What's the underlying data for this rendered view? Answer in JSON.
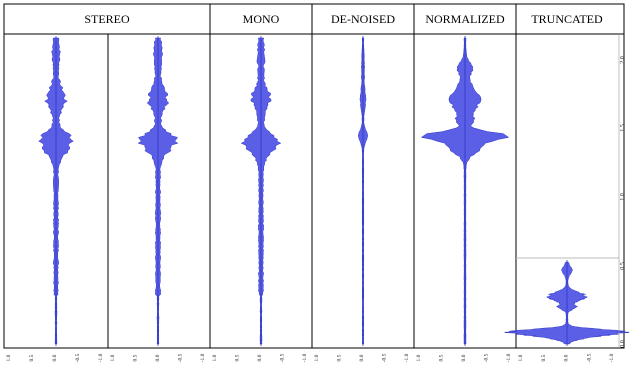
{
  "headers": [
    {
      "key": "stereo",
      "label": "STEREO"
    },
    {
      "key": "mono",
      "label": "MONO"
    },
    {
      "key": "denoised",
      "label": "DE-NOISED"
    },
    {
      "key": "normalized",
      "label": "NORMALIZED"
    },
    {
      "key": "truncated",
      "label": "TRUNCATED"
    }
  ],
  "right_axis_ticks": [
    "2.0",
    "1.5",
    "1.0",
    "0.5",
    "0.0"
  ],
  "bottom_axis_ticks": [
    "1.0",
    "0.5",
    "0.0",
    "-0.5",
    "-1.0"
  ],
  "colors": {
    "waveform_fill": "#5a5fe6",
    "waveform_stroke": "#2f35c9",
    "border": "#000000",
    "background": "#ffffff",
    "truncated_line": "#bbbbbb"
  },
  "panels": [
    {
      "name": "stereo-left",
      "profile": "full"
    },
    {
      "name": "stereo-right",
      "profile": "full"
    },
    {
      "name": "mono",
      "profile": "full"
    },
    {
      "name": "denoised",
      "profile": "denoised"
    },
    {
      "name": "normalized",
      "profile": "normalized"
    },
    {
      "name": "truncated",
      "profile": "truncated"
    }
  ],
  "truncated_window": {
    "start": 0.0,
    "end": 0.6
  }
}
